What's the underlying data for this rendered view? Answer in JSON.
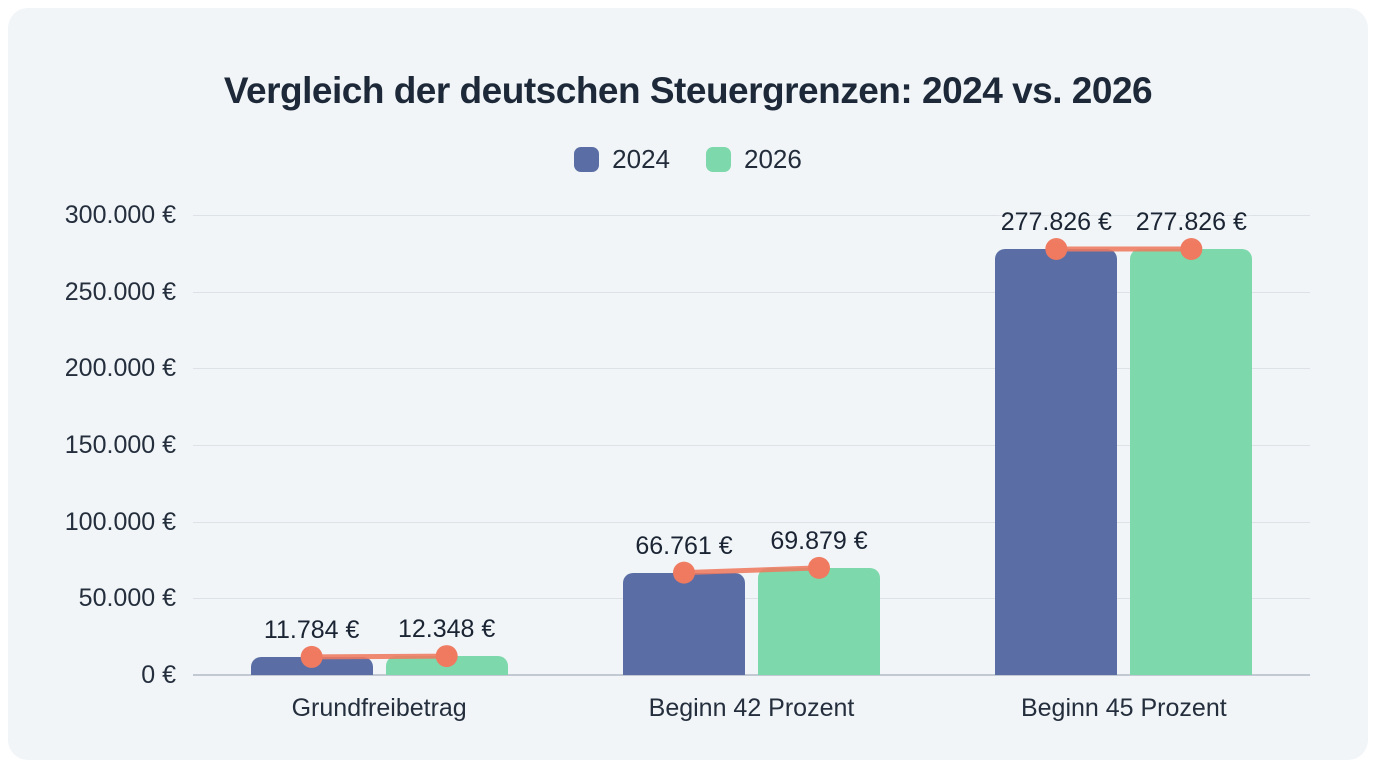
{
  "chart_data": {
    "type": "bar",
    "title": "Vergleich der deutschen Steuergrenzen: 2024 vs. 2026",
    "categories": [
      "Grundfreibetrag",
      "Beginn 42 Prozent",
      "Beginn 45 Prozent"
    ],
    "series": [
      {
        "name": "2024",
        "color": "#5a6ea5",
        "values": [
          11784,
          66761,
          277826
        ],
        "labels": [
          "11.784 €",
          "66.761 €",
          "277.826 €"
        ]
      },
      {
        "name": "2026",
        "color": "#7dd8ab",
        "values": [
          12348,
          69879,
          277826
        ],
        "labels": [
          "12.348 €",
          "69.879 €",
          "277.826 €"
        ]
      }
    ],
    "overlay_line": {
      "type": "line",
      "color": "#ef7a60",
      "marker": "circle",
      "note": "connects the two bar tops within each category group"
    },
    "y_axis": {
      "min": 0,
      "max": 300000,
      "step": 50000,
      "ticks": [
        "0 €",
        "50.000 €",
        "100.000 €",
        "150.000 €",
        "200.000 €",
        "250.000 €",
        "300.000 €"
      ]
    },
    "legend": {
      "position": "top",
      "entries": [
        "2024",
        "2026"
      ]
    },
    "grid": true,
    "colors": {
      "card_background": "#f1f5f7",
      "page_background": "#ffffff",
      "gridline": "#dde2e8",
      "axis_line": "#c2c9d2",
      "title_text": "#1d2838",
      "axis_text": "#242e3d"
    }
  }
}
